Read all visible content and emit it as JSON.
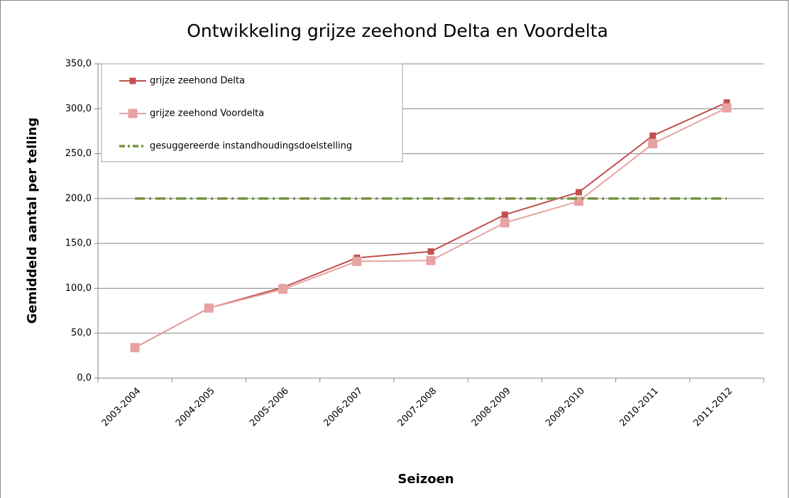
{
  "chart_data": {
    "type": "line",
    "title": "Ontwikkeling grijze zeehond Delta en Voordelta",
    "x_label": "Seizoen",
    "y_label": "Gemiddeld aantal per telling",
    "categories": [
      "2003-2004",
      "2004-2005",
      "2005-2006",
      "2006-2007",
      "2007-2008",
      "2008-2009",
      "2009-2010",
      "2010-2011",
      "2011-2012"
    ],
    "series": [
      {
        "name": "grijze zeehond Delta",
        "color": "#c0504d",
        "marker": "square",
        "marker_size": 9,
        "values": [
          34,
          78,
          101,
          134,
          141,
          182,
          207,
          270,
          307
        ]
      },
      {
        "name": "grijze zeehond Voordelta",
        "color": "#e6a3a1",
        "marker": "square",
        "marker_size": 13,
        "values": [
          34,
          78,
          99,
          130,
          131,
          173,
          197,
          261,
          301
        ]
      },
      {
        "name": "gesuggereerde instandhoudingsdoelstelling",
        "color": "#77933c",
        "line_style": "dashdot",
        "values": [
          200,
          200,
          200,
          200,
          200,
          200,
          200,
          200,
          200
        ]
      }
    ],
    "ylim": [
      0,
      350
    ],
    "yticks": [
      {
        "value": 0,
        "label": "0,0"
      },
      {
        "value": 50,
        "label": "50,0"
      },
      {
        "value": 100,
        "label": "100,0"
      },
      {
        "value": 150,
        "label": "150,0"
      },
      {
        "value": 200,
        "label": "200,0"
      },
      {
        "value": 250,
        "label": "250,0"
      },
      {
        "value": 300,
        "label": "300,0"
      },
      {
        "value": 350,
        "label": "350,0"
      }
    ],
    "grid": true,
    "legend": "upper left"
  }
}
